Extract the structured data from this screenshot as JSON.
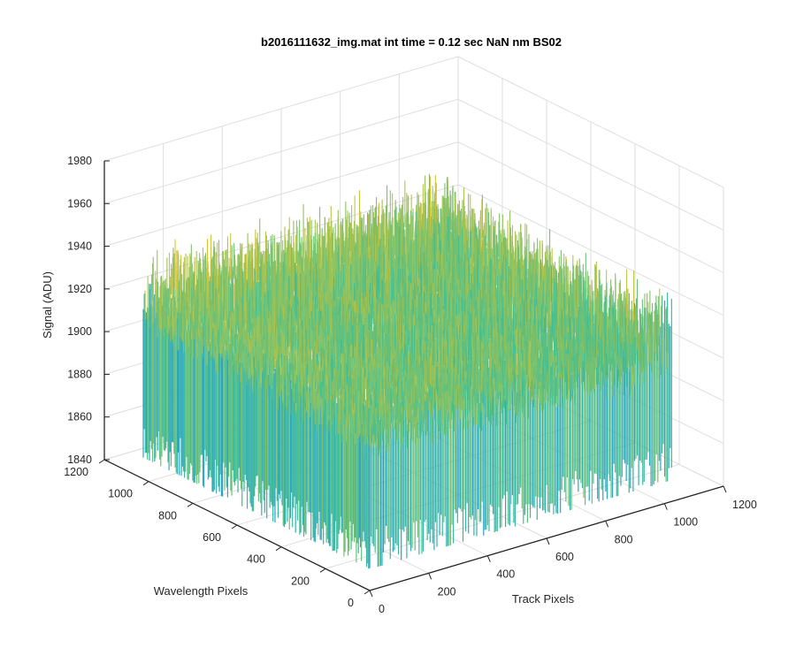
{
  "figure": {
    "background": "#ffffff"
  },
  "chart_data": {
    "type": "surface",
    "title": "b2016111632_img.mat int time = 0.12 sec  NaN nm BS02",
    "xlabel": "Track Pixels",
    "ylabel": "Wavelength Pixels",
    "zlabel": "Signal (ADU)",
    "xlim": [
      0,
      1200
    ],
    "ylim": [
      0,
      1200
    ],
    "zlim": [
      1840,
      1980
    ],
    "x_ticks": [
      "0",
      "200",
      "400",
      "600",
      "800",
      "1000",
      "1200"
    ],
    "y_ticks": [
      "0",
      "200",
      "400",
      "600",
      "800",
      "1000",
      "1200"
    ],
    "z_ticks": [
      "1840",
      "1860",
      "1880",
      "1900",
      "1920",
      "1940",
      "1960",
      "1980"
    ],
    "data_extent": {
      "x": [
        0,
        1024
      ],
      "y": [
        0,
        1024
      ]
    },
    "signal_level": {
      "typical_min": 1880,
      "typical_max": 1930,
      "min": 1850,
      "max": 1970
    },
    "grid": true,
    "box": false,
    "colormap": "parula",
    "colors": {
      "low": "#1f93d6",
      "mid": "#3fbf94",
      "high": "#e6c528",
      "grid": "#dedede",
      "axis": "#262626"
    }
  }
}
